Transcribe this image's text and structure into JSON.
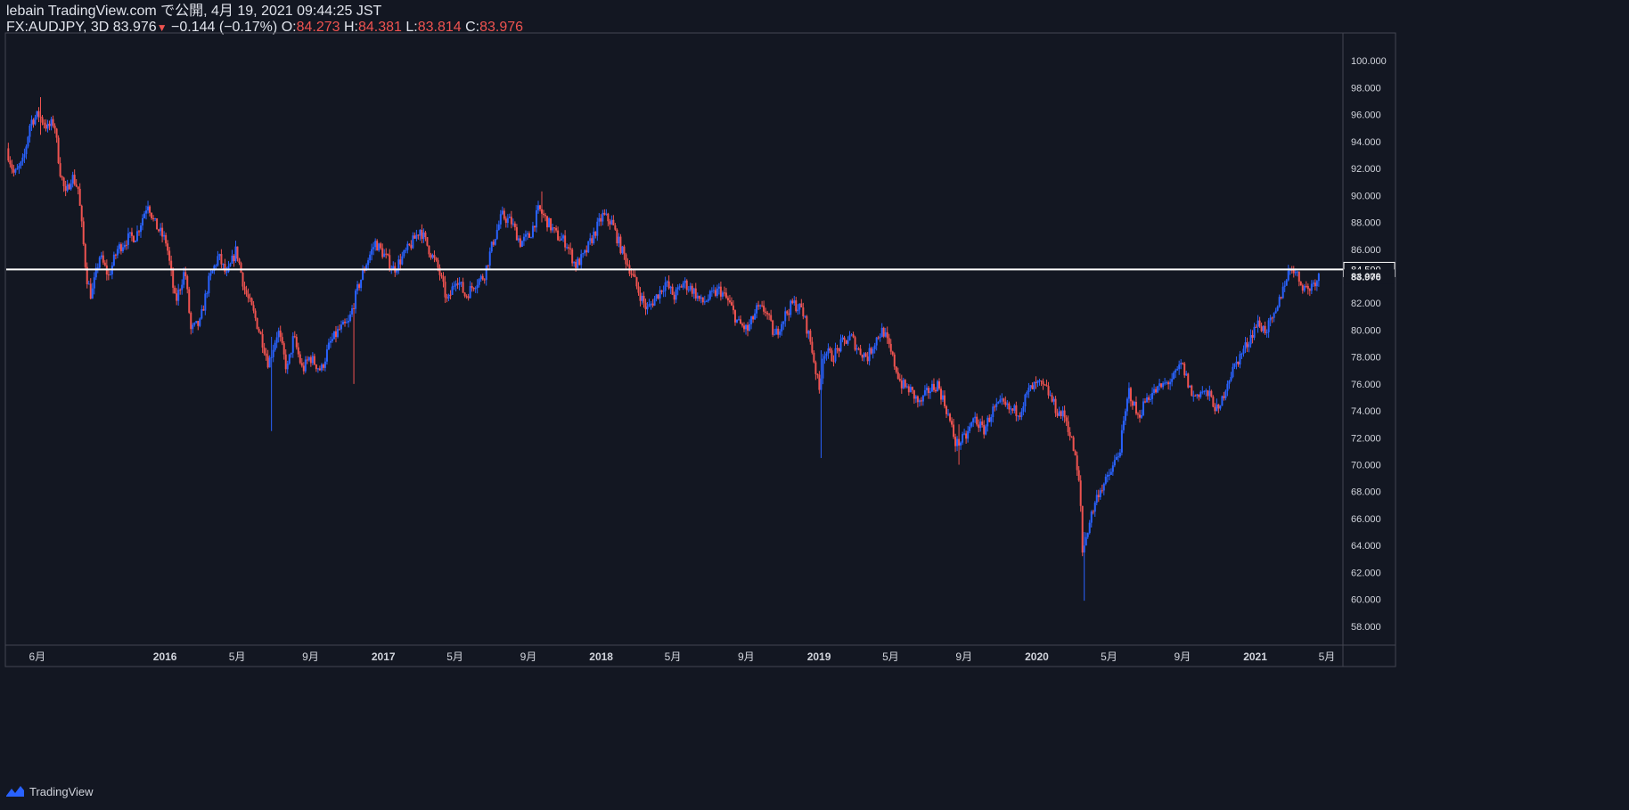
{
  "header": {
    "published": "lebain TradingView.com で公開, 4月 19, 2021 09:44:25 JST",
    "symbol": "FX:AUDJPY, 3D",
    "last": "83.976",
    "arrow": "▼",
    "change": "−0.144 (−0.17%)",
    "o_label": "O:",
    "o_value": "84.273",
    "h_label": "H:",
    "h_value": "84.381",
    "l_label": "L:",
    "l_value": "83.814",
    "c_label": "C:",
    "c_value": "83.976"
  },
  "footer": {
    "brand": "TradingView"
  },
  "colors": {
    "background": "#131722",
    "up": "#2962ff",
    "down": "#ef5350",
    "grid_border": "#434651",
    "line": "#ffffff",
    "text": "#d1d4dc"
  },
  "chart_data": {
    "type": "candlestick",
    "ylim": [
      56.6,
      102.0
    ],
    "y_ticks": [
      100,
      98,
      96,
      94,
      92,
      90,
      88,
      86,
      84,
      82,
      80,
      78,
      76,
      74,
      72,
      70,
      68,
      66,
      64,
      62,
      60,
      58
    ],
    "y_tick_labels": [
      "100.000",
      "98.000",
      "96.000",
      "94.000",
      "92.000",
      "90.000",
      "88.000",
      "86.000",
      "84.000",
      "82.000",
      "80.000",
      "78.000",
      "76.000",
      "74.000",
      "72.000",
      "70.000",
      "68.000",
      "66.000",
      "64.000",
      "62.000",
      "60.000",
      "58.000"
    ],
    "x_range": [
      "2015-04-10",
      "2021-05-28"
    ],
    "x_ticks": [
      {
        "date": "2015-06-01",
        "label": "6月",
        "bold": false
      },
      {
        "date": "2016-01-01",
        "label": "2016",
        "bold": true
      },
      {
        "date": "2016-05-01",
        "label": "5月",
        "bold": false
      },
      {
        "date": "2016-09-01",
        "label": "9月",
        "bold": false
      },
      {
        "date": "2017-01-01",
        "label": "2017",
        "bold": true
      },
      {
        "date": "2017-05-01",
        "label": "5月",
        "bold": false
      },
      {
        "date": "2017-09-01",
        "label": "9月",
        "bold": false
      },
      {
        "date": "2018-01-01",
        "label": "2018",
        "bold": true
      },
      {
        "date": "2018-05-01",
        "label": "5月",
        "bold": false
      },
      {
        "date": "2018-09-01",
        "label": "9月",
        "bold": false
      },
      {
        "date": "2019-01-01",
        "label": "2019",
        "bold": true
      },
      {
        "date": "2019-05-01",
        "label": "5月",
        "bold": false
      },
      {
        "date": "2019-09-01",
        "label": "9月",
        "bold": false
      },
      {
        "date": "2020-01-01",
        "label": "2020",
        "bold": true
      },
      {
        "date": "2020-05-01",
        "label": "5月",
        "bold": false
      },
      {
        "date": "2020-09-01",
        "label": "9月",
        "bold": false
      },
      {
        "date": "2021-01-01",
        "label": "2021",
        "bold": true
      },
      {
        "date": "2021-05-01",
        "label": "5月",
        "bold": false
      }
    ],
    "horizontal_line": {
      "value": 84.5,
      "label": "84.500"
    },
    "last_price": {
      "value": 83.976,
      "label": "83.976"
    },
    "interval_days": 3,
    "price_path": [
      [
        "2015-04-12",
        93.5
      ],
      [
        "2015-04-25",
        91.5
      ],
      [
        "2015-05-10",
        92.5
      ],
      [
        "2015-05-22",
        95.5
      ],
      [
        "2015-06-05",
        96.0
      ],
      [
        "2015-06-20",
        95.0
      ],
      [
        "2015-07-01",
        95.5
      ],
      [
        "2015-07-10",
        92.0
      ],
      [
        "2015-07-20",
        90.0
      ],
      [
        "2015-07-30",
        91.5
      ],
      [
        "2015-08-10",
        90.5
      ],
      [
        "2015-08-24",
        84.0
      ],
      [
        "2015-09-01",
        82.5
      ],
      [
        "2015-09-15",
        85.5
      ],
      [
        "2015-09-30",
        84.0
      ],
      [
        "2015-10-15",
        86.0
      ],
      [
        "2015-11-01",
        86.8
      ],
      [
        "2015-11-15",
        87.0
      ],
      [
        "2015-12-05",
        89.5
      ],
      [
        "2015-12-15",
        88.0
      ],
      [
        "2016-01-05",
        86.5
      ],
      [
        "2016-01-20",
        82.0
      ],
      [
        "2016-02-05",
        84.5
      ],
      [
        "2016-02-15",
        80.0
      ],
      [
        "2016-03-01",
        80.5
      ],
      [
        "2016-03-15",
        83.5
      ],
      [
        "2016-04-01",
        85.5
      ],
      [
        "2016-04-15",
        84.0
      ],
      [
        "2016-05-01",
        86.0
      ],
      [
        "2016-05-15",
        83.0
      ],
      [
        "2016-06-01",
        81.0
      ],
      [
        "2016-06-15",
        79.0
      ],
      [
        "2016-06-24",
        77.5
      ],
      [
        "2016-07-10",
        80.0
      ],
      [
        "2016-07-25",
        77.0
      ],
      [
        "2016-08-05",
        79.5
      ],
      [
        "2016-08-20",
        77.0
      ],
      [
        "2016-09-01",
        78.0
      ],
      [
        "2016-09-20",
        77.0
      ],
      [
        "2016-10-05",
        79.0
      ],
      [
        "2016-10-20",
        80.0
      ],
      [
        "2016-11-05",
        80.5
      ],
      [
        "2016-11-20",
        83.0
      ],
      [
        "2016-12-05",
        85.0
      ],
      [
        "2016-12-20",
        86.5
      ],
      [
        "2017-01-05",
        85.5
      ],
      [
        "2017-01-20",
        84.5
      ],
      [
        "2017-02-05",
        85.5
      ],
      [
        "2017-02-20",
        86.5
      ],
      [
        "2017-03-05",
        87.5
      ],
      [
        "2017-03-20",
        86.0
      ],
      [
        "2017-04-05",
        84.5
      ],
      [
        "2017-04-20",
        82.0
      ],
      [
        "2017-05-05",
        84.0
      ],
      [
        "2017-05-20",
        82.5
      ],
      [
        "2017-06-05",
        83.5
      ],
      [
        "2017-06-20",
        84.0
      ],
      [
        "2017-07-05",
        86.5
      ],
      [
        "2017-07-20",
        88.5
      ],
      [
        "2017-08-05",
        88.0
      ],
      [
        "2017-08-20",
        86.5
      ],
      [
        "2017-09-05",
        87.0
      ],
      [
        "2017-09-20",
        89.0
      ],
      [
        "2017-10-05",
        88.0
      ],
      [
        "2017-10-20",
        87.0
      ],
      [
        "2017-11-05",
        86.5
      ],
      [
        "2017-11-20",
        84.8
      ],
      [
        "2017-12-05",
        85.5
      ],
      [
        "2017-12-20",
        87.0
      ],
      [
        "2018-01-05",
        88.5
      ],
      [
        "2018-01-20",
        88.0
      ],
      [
        "2018-02-05",
        86.0
      ],
      [
        "2018-02-20",
        84.5
      ],
      [
        "2018-03-05",
        83.0
      ],
      [
        "2018-03-20",
        81.5
      ],
      [
        "2018-04-05",
        82.5
      ],
      [
        "2018-04-20",
        83.5
      ],
      [
        "2018-05-05",
        82.5
      ],
      [
        "2018-05-20",
        83.5
      ],
      [
        "2018-06-05",
        83.0
      ],
      [
        "2018-06-20",
        82.0
      ],
      [
        "2018-07-05",
        82.5
      ],
      [
        "2018-07-20",
        83.0
      ],
      [
        "2018-08-05",
        82.0
      ],
      [
        "2018-08-20",
        80.5
      ],
      [
        "2018-09-05",
        80.0
      ],
      [
        "2018-09-20",
        81.5
      ],
      [
        "2018-10-05",
        81.5
      ],
      [
        "2018-10-20",
        79.5
      ],
      [
        "2018-11-05",
        81.0
      ],
      [
        "2018-11-20",
        82.0
      ],
      [
        "2018-12-05",
        81.5
      ],
      [
        "2018-12-20",
        79.0
      ],
      [
        "2019-01-03",
        75.5
      ],
      [
        "2019-01-10",
        78.5
      ],
      [
        "2019-01-25",
        78.0
      ],
      [
        "2019-02-10",
        79.0
      ],
      [
        "2019-02-25",
        79.5
      ],
      [
        "2019-03-10",
        78.5
      ],
      [
        "2019-03-25",
        78.0
      ],
      [
        "2019-04-10",
        79.5
      ],
      [
        "2019-04-20",
        80.0
      ],
      [
        "2019-05-05",
        78.0
      ],
      [
        "2019-05-20",
        76.0
      ],
      [
        "2019-06-05",
        75.5
      ],
      [
        "2019-06-20",
        74.5
      ],
      [
        "2019-07-05",
        75.5
      ],
      [
        "2019-07-20",
        76.0
      ],
      [
        "2019-08-05",
        74.0
      ],
      [
        "2019-08-20",
        71.5
      ],
      [
        "2019-09-05",
        72.0
      ],
      [
        "2019-09-20",
        73.5
      ],
      [
        "2019-10-05",
        72.5
      ],
      [
        "2019-10-20",
        74.0
      ],
      [
        "2019-11-05",
        74.5
      ],
      [
        "2019-11-20",
        74.0
      ],
      [
        "2019-12-05",
        74.0
      ],
      [
        "2019-12-20",
        75.5
      ],
      [
        "2020-01-05",
        76.0
      ],
      [
        "2020-01-20",
        75.5
      ],
      [
        "2020-02-05",
        74.0
      ],
      [
        "2020-02-20",
        73.5
      ],
      [
        "2020-03-05",
        71.0
      ],
      [
        "2020-03-15",
        68.0
      ],
      [
        "2020-03-19",
        63.5
      ],
      [
        "2020-04-01",
        66.0
      ],
      [
        "2020-04-15",
        68.0
      ],
      [
        "2020-05-01",
        69.0
      ],
      [
        "2020-05-20",
        71.0
      ],
      [
        "2020-06-05",
        75.5
      ],
      [
        "2020-06-20",
        73.5
      ],
      [
        "2020-07-05",
        75.0
      ],
      [
        "2020-07-20",
        75.5
      ],
      [
        "2020-08-05",
        76.0
      ],
      [
        "2020-08-20",
        76.5
      ],
      [
        "2020-09-01",
        77.5
      ],
      [
        "2020-09-20",
        75.0
      ],
      [
        "2020-10-05",
        75.5
      ],
      [
        "2020-10-20",
        75.0
      ],
      [
        "2020-11-02",
        73.8
      ],
      [
        "2020-11-15",
        76.0
      ],
      [
        "2020-12-01",
        77.5
      ],
      [
        "2020-12-20",
        79.0
      ],
      [
        "2021-01-05",
        80.5
      ],
      [
        "2021-01-20",
        80.0
      ],
      [
        "2021-02-05",
        81.0
      ],
      [
        "2021-02-20",
        83.5
      ],
      [
        "2021-03-05",
        84.8
      ],
      [
        "2021-03-20",
        83.5
      ],
      [
        "2021-04-01",
        83.0
      ],
      [
        "2021-04-18",
        83.976
      ]
    ],
    "extreme_wicks": [
      {
        "date": "2015-06-05",
        "low": 94.5,
        "high": 97.3
      },
      {
        "date": "2016-06-24",
        "low": 72.5,
        "high": 79.5
      },
      {
        "date": "2016-11-09",
        "low": 76.0,
        "high": 80.5
      },
      {
        "date": "2019-01-03",
        "low": 70.5,
        "high": 78.5
      },
      {
        "date": "2019-08-20",
        "low": 70.0,
        "high": 73.0
      },
      {
        "date": "2020-03-19",
        "low": 59.9,
        "high": 65.0
      },
      {
        "date": "2017-09-20",
        "low": 88.0,
        "high": 90.3
      }
    ]
  }
}
